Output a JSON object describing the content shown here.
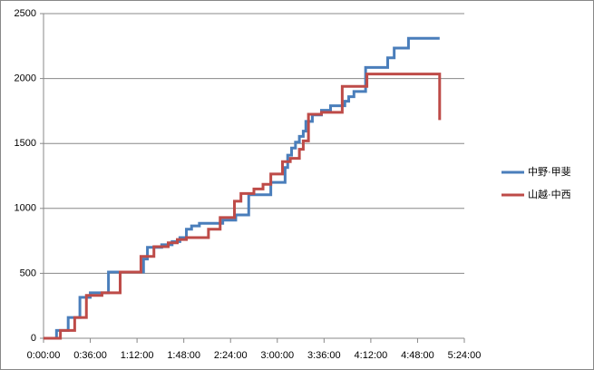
{
  "chart_data": {
    "type": "line",
    "xlim": [
      0,
      324
    ],
    "xticks": [
      {
        "value": 0,
        "label": "0:00:00"
      },
      {
        "value": 36,
        "label": "0:36:00"
      },
      {
        "value": 72,
        "label": "1:12:00"
      },
      {
        "value": 108,
        "label": "1:48:00"
      },
      {
        "value": 144,
        "label": "2:24:00"
      },
      {
        "value": 180,
        "label": "3:00:00"
      },
      {
        "value": 216,
        "label": "3:36:00"
      },
      {
        "value": 252,
        "label": "4:12:00"
      },
      {
        "value": 288,
        "label": "4:48:00"
      },
      {
        "value": 324,
        "label": "5:24:00"
      }
    ],
    "ylim": [
      0,
      2500
    ],
    "yticks": [
      0,
      500,
      1000,
      1500,
      2000,
      2500
    ],
    "grid": true,
    "legend": "right",
    "series": [
      {
        "name": "中野·甲斐",
        "color": "#4a7ebb",
        "x": [
          0,
          10,
          10,
          19,
          19,
          28,
          28,
          36,
          36,
          50,
          50,
          77,
          77,
          80,
          80,
          91,
          91,
          99,
          99,
          105,
          105,
          110,
          110,
          114,
          114,
          120,
          120,
          138,
          138,
          148,
          148,
          158,
          158,
          175,
          175,
          186,
          186,
          188,
          188,
          191,
          191,
          194,
          194,
          197,
          197,
          200,
          200,
          202,
          202,
          207,
          207,
          214,
          214,
          221,
          221,
          232,
          232,
          235,
          235,
          239,
          239,
          248,
          248,
          265,
          265,
          270,
          270,
          281,
          281,
          305
        ],
        "values": [
          0,
          0,
          60,
          60,
          160,
          160,
          315,
          315,
          350,
          350,
          510,
          510,
          610,
          610,
          700,
          700,
          720,
          720,
          745,
          745,
          775,
          775,
          840,
          840,
          865,
          865,
          885,
          885,
          910,
          910,
          950,
          950,
          1105,
          1105,
          1200,
          1200,
          1315,
          1315,
          1410,
          1410,
          1465,
          1465,
          1510,
          1510,
          1555,
          1555,
          1595,
          1595,
          1670,
          1670,
          1720,
          1720,
          1755,
          1755,
          1790,
          1790,
          1825,
          1825,
          1860,
          1860,
          1900,
          1900,
          2085,
          2085,
          2160,
          2160,
          2235,
          2235,
          2310,
          2310
        ]
      },
      {
        "name": "山越·中西",
        "color": "#be4b48",
        "x": [
          0,
          13,
          13,
          24,
          24,
          33,
          33,
          45,
          45,
          59,
          59,
          75,
          75,
          85,
          85,
          96,
          96,
          103,
          103,
          110,
          110,
          127,
          127,
          136,
          136,
          147,
          147,
          152,
          152,
          162,
          162,
          169,
          169,
          175,
          175,
          184,
          184,
          190,
          190,
          197,
          197,
          200,
          200,
          204,
          204,
          214,
          214,
          230,
          230,
          249,
          249,
          305,
          305
        ],
        "values": [
          0,
          0,
          60,
          60,
          160,
          160,
          330,
          330,
          350,
          350,
          510,
          510,
          630,
          630,
          705,
          705,
          735,
          735,
          760,
          760,
          775,
          775,
          840,
          840,
          930,
          930,
          1055,
          1055,
          1115,
          1115,
          1150,
          1150,
          1185,
          1185,
          1265,
          1265,
          1360,
          1360,
          1385,
          1385,
          1455,
          1455,
          1520,
          1520,
          1725,
          1725,
          1740,
          1740,
          1940,
          1940,
          2035,
          2035,
          1680
        ]
      }
    ]
  }
}
